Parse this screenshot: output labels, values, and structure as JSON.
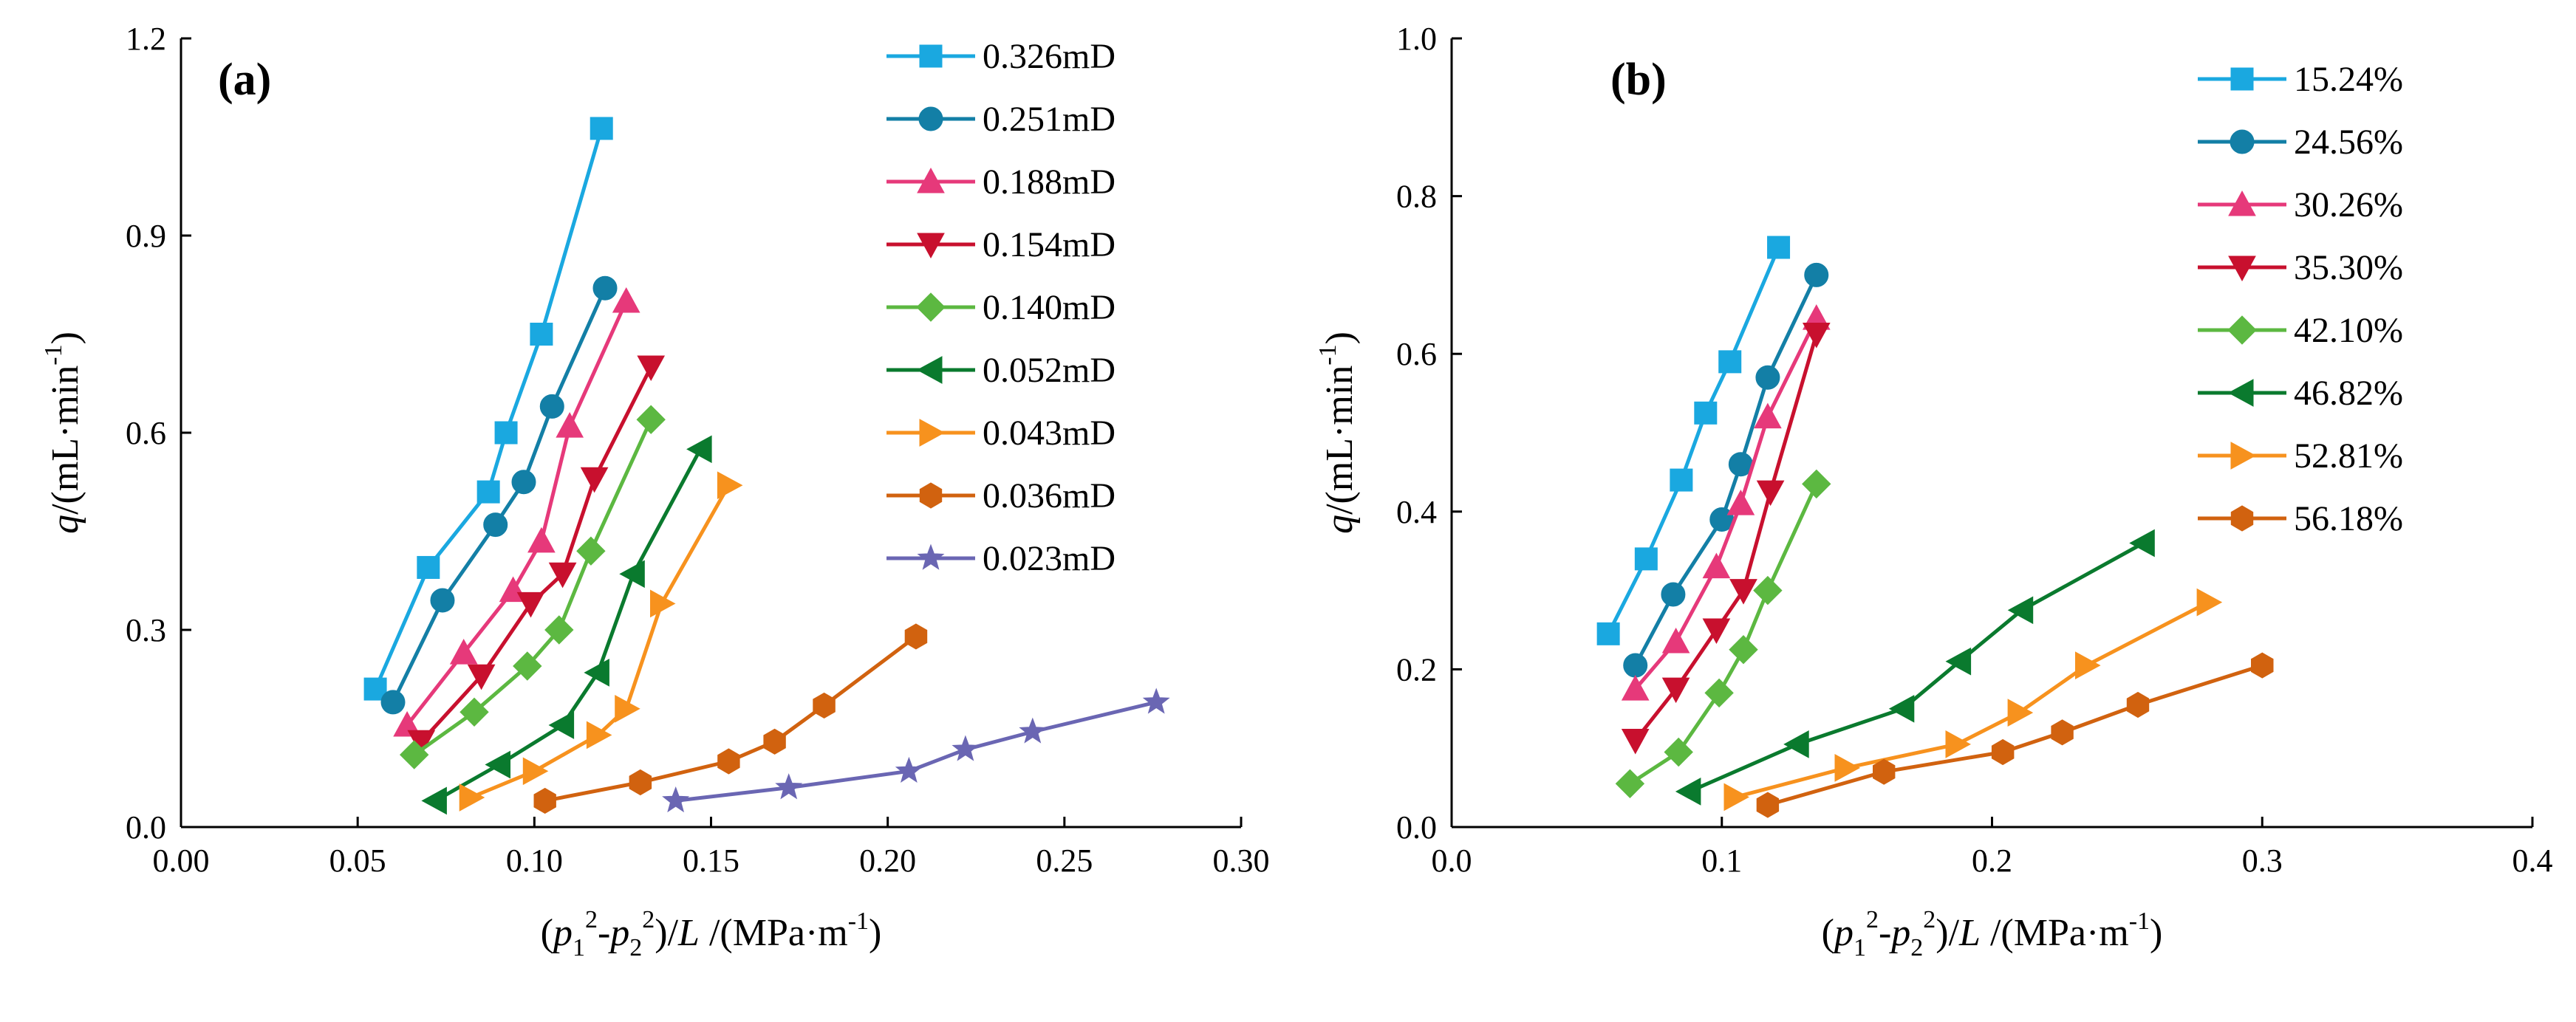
{
  "chart_data": [
    {
      "type": "line",
      "panel_label": "(a)",
      "xlabel": "(p₁²-p₂²)/L /(MPa·m⁻¹)",
      "ylabel": "q/(mL·min⁻¹)",
      "xlim": [
        0.0,
        0.3
      ],
      "ylim": [
        0.0,
        1.2
      ],
      "xticks": [
        0.0,
        0.05,
        0.1,
        0.15,
        0.2,
        0.25,
        0.3
      ],
      "xtick_labels": [
        "0.00",
        "0.05",
        "0.10",
        "0.15",
        "0.20",
        "0.25",
        "0.30"
      ],
      "yticks": [
        0.0,
        0.3,
        0.6,
        0.9,
        1.2
      ],
      "ytick_labels": [
        "0.0",
        "0.3",
        "0.6",
        "0.9",
        "1.2"
      ],
      "legend_position": "top-right",
      "series": [
        {
          "name": "0.326mD",
          "color": "#1aa8e0",
          "marker": "square",
          "x": [
            0.055,
            0.07,
            0.087,
            0.092,
            0.102,
            0.119
          ],
          "y": [
            0.21,
            0.395,
            0.51,
            0.6,
            0.75,
            1.063
          ]
        },
        {
          "name": "0.251mD",
          "color": "#137fa6",
          "marker": "circle",
          "x": [
            0.06,
            0.074,
            0.089,
            0.097,
            0.105,
            0.12
          ],
          "y": [
            0.19,
            0.345,
            0.46,
            0.525,
            0.64,
            0.82
          ]
        },
        {
          "name": "0.188mD",
          "color": "#e6397a",
          "marker": "triangle-up",
          "x": [
            0.064,
            0.08,
            0.094,
            0.102,
            0.11,
            0.126
          ],
          "y": [
            0.155,
            0.265,
            0.36,
            0.435,
            0.61,
            0.8
          ]
        },
        {
          "name": "0.154mD",
          "color": "#c8102e",
          "marker": "triangle-down",
          "x": [
            0.068,
            0.085,
            0.099,
            0.108,
            0.117,
            0.133
          ],
          "y": [
            0.13,
            0.23,
            0.34,
            0.385,
            0.53,
            0.7
          ]
        },
        {
          "name": "0.140mD",
          "color": "#5cb841",
          "marker": "diamond",
          "x": [
            0.066,
            0.083,
            0.098,
            0.107,
            0.116,
            0.133
          ],
          "y": [
            0.11,
            0.175,
            0.245,
            0.3,
            0.42,
            0.62
          ]
        },
        {
          "name": "0.052mD",
          "color": "#0a7a2e",
          "marker": "triangle-left",
          "x": [
            0.072,
            0.09,
            0.108,
            0.118,
            0.128,
            0.147
          ],
          "y": [
            0.04,
            0.095,
            0.155,
            0.235,
            0.385,
            0.575
          ]
        },
        {
          "name": "0.043mD",
          "color": "#f7921e",
          "marker": "triangle-right",
          "x": [
            0.082,
            0.1,
            0.118,
            0.126,
            0.136,
            0.155
          ],
          "y": [
            0.045,
            0.085,
            0.14,
            0.18,
            0.34,
            0.52
          ]
        },
        {
          "name": "0.036mD",
          "color": "#d1620f",
          "marker": "hexagon",
          "x": [
            0.103,
            0.13,
            0.155,
            0.168,
            0.182,
            0.208
          ],
          "y": [
            0.04,
            0.068,
            0.1,
            0.13,
            0.185,
            0.29
          ]
        },
        {
          "name": "0.023mD",
          "color": "#6a66b3",
          "marker": "star",
          "x": [
            0.14,
            0.172,
            0.206,
            0.222,
            0.241,
            0.276
          ],
          "y": [
            0.04,
            0.06,
            0.085,
            0.118,
            0.145,
            0.19
          ]
        }
      ]
    },
    {
      "type": "line",
      "panel_label": "(b)",
      "xlabel": "(p₁²-p₂²)/L /(MPa·m⁻¹)",
      "ylabel": "q/(mL·min⁻¹)",
      "xlim": [
        0.0,
        0.4
      ],
      "ylim": [
        0.0,
        1.0
      ],
      "xticks": [
        0.0,
        0.1,
        0.2,
        0.3,
        0.4
      ],
      "xtick_labels": [
        "0.0",
        "0.1",
        "0.2",
        "0.3",
        "0.4"
      ],
      "yticks": [
        0.0,
        0.2,
        0.4,
        0.6,
        0.8,
        1.0
      ],
      "ytick_labels": [
        "0.0",
        "0.2",
        "0.4",
        "0.6",
        "0.8",
        "1.0"
      ],
      "legend_position": "top-right",
      "series": [
        {
          "name": "15.24%",
          "color": "#1aa8e0",
          "marker": "square",
          "x": [
            0.058,
            0.072,
            0.085,
            0.094,
            0.103,
            0.121
          ],
          "y": [
            0.245,
            0.34,
            0.44,
            0.525,
            0.59,
            0.735
          ]
        },
        {
          "name": "24.56%",
          "color": "#137fa6",
          "marker": "circle",
          "x": [
            0.068,
            0.082,
            0.1,
            0.107,
            0.117,
            0.135
          ],
          "y": [
            0.205,
            0.295,
            0.39,
            0.46,
            0.57,
            0.7
          ]
        },
        {
          "name": "30.26%",
          "color": "#e6397a",
          "marker": "triangle-up",
          "x": [
            0.068,
            0.083,
            0.098,
            0.107,
            0.117,
            0.135
          ],
          "y": [
            0.175,
            0.235,
            0.33,
            0.41,
            0.52,
            0.645
          ]
        },
        {
          "name": "35.30%",
          "color": "#c8102e",
          "marker": "triangle-down",
          "x": [
            0.068,
            0.083,
            0.098,
            0.108,
            0.118,
            0.135
          ],
          "y": [
            0.11,
            0.175,
            0.25,
            0.3,
            0.425,
            0.625
          ]
        },
        {
          "name": "42.10%",
          "color": "#5cb841",
          "marker": "diamond",
          "x": [
            0.066,
            0.084,
            0.099,
            0.108,
            0.117,
            0.135
          ],
          "y": [
            0.055,
            0.095,
            0.17,
            0.225,
            0.3,
            0.435
          ]
        },
        {
          "name": "46.82%",
          "color": "#0a7a2e",
          "marker": "triangle-left",
          "x": [
            0.088,
            0.128,
            0.167,
            0.188,
            0.211,
            0.256
          ],
          "y": [
            0.045,
            0.105,
            0.15,
            0.21,
            0.275,
            0.36
          ]
        },
        {
          "name": "52.81%",
          "color": "#f7921e",
          "marker": "triangle-right",
          "x": [
            0.105,
            0.146,
            0.187,
            0.21,
            0.235,
            0.28
          ],
          "y": [
            0.038,
            0.075,
            0.105,
            0.145,
            0.205,
            0.285
          ]
        },
        {
          "name": "56.18%",
          "color": "#d1620f",
          "marker": "hexagon",
          "x": [
            0.117,
            0.16,
            0.204,
            0.226,
            0.254,
            0.3
          ],
          "y": [
            0.028,
            0.07,
            0.095,
            0.12,
            0.155,
            0.205
          ]
        }
      ]
    }
  ]
}
